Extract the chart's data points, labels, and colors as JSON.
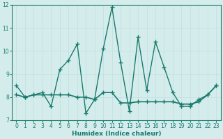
{
  "x": [
    0,
    1,
    2,
    3,
    4,
    5,
    6,
    7,
    8,
    9,
    10,
    11,
    12,
    13,
    14,
    15,
    16,
    17,
    18,
    19,
    20,
    21,
    22,
    23
  ],
  "y_volatile": [
    8.5,
    8.0,
    8.1,
    8.2,
    7.6,
    9.2,
    9.6,
    10.3,
    7.3,
    7.9,
    10.1,
    11.9,
    9.5,
    7.4,
    10.6,
    8.3,
    10.4,
    9.3,
    8.2,
    7.6,
    7.6,
    7.9,
    8.1,
    8.5
  ],
  "y_trend": [
    8.1,
    8.0,
    8.1,
    8.1,
    8.1,
    8.1,
    8.1,
    8.0,
    8.0,
    7.9,
    8.2,
    8.2,
    7.75,
    7.75,
    7.8,
    7.8,
    7.8,
    7.8,
    7.8,
    7.7,
    7.7,
    7.8,
    8.1,
    8.5
  ],
  "line_color": "#1a7a6e",
  "bg_color": "#d4edec",
  "grid_major_color": "#c0dede",
  "grid_minor_color": "#cce8e8",
  "xlabel": "Humidex (Indice chaleur)",
  "ylim": [
    7,
    12
  ],
  "xlim": [
    -0.5,
    23.5
  ],
  "yticks": [
    7,
    8,
    9,
    10,
    11,
    12
  ],
  "xticks": [
    0,
    1,
    2,
    3,
    4,
    5,
    6,
    7,
    8,
    9,
    10,
    11,
    12,
    13,
    14,
    15,
    16,
    17,
    18,
    19,
    20,
    21,
    22,
    23
  ]
}
